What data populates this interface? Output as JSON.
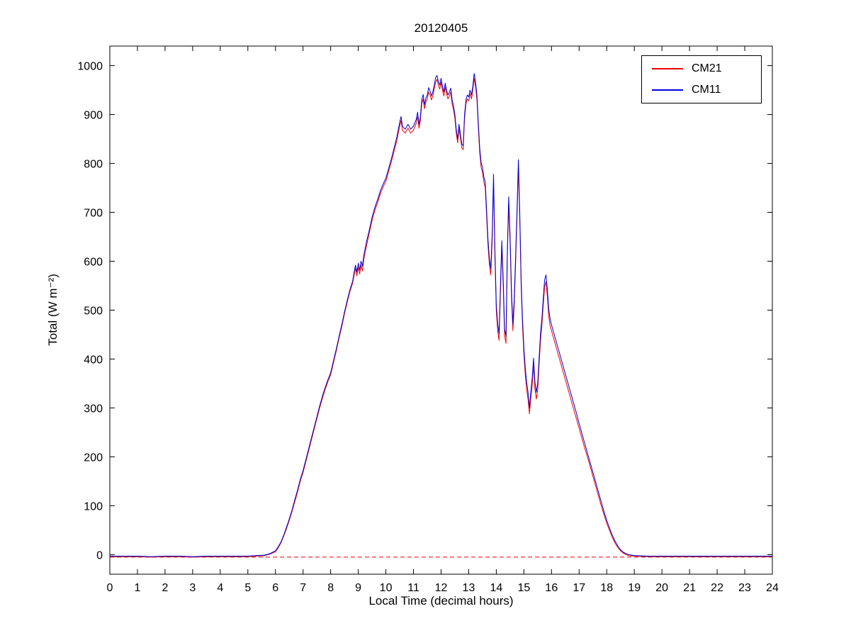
{
  "chart_data": {
    "type": "line",
    "title": "20120405",
    "xlabel": "Local Time (decimal hours)",
    "ylabel": "Total (W m⁻²)",
    "xlim": [
      0,
      24
    ],
    "ylim": [
      -40,
      1040
    ],
    "xticks": [
      0,
      1,
      2,
      3,
      4,
      5,
      6,
      7,
      8,
      9,
      10,
      11,
      12,
      13,
      14,
      15,
      16,
      17,
      18,
      19,
      20,
      21,
      22,
      23,
      24
    ],
    "yticks": [
      0,
      100,
      200,
      300,
      400,
      500,
      600,
      700,
      800,
      900,
      1000
    ],
    "grid": false,
    "legend_position": "top-right",
    "reference_line": {
      "y": -5,
      "color": "#ee0000",
      "style": "dashed"
    },
    "series": [
      {
        "name": "CM21",
        "color": "#ee0000"
      },
      {
        "name": "CM11",
        "color": "#0000dd"
      }
    ],
    "points_format": [
      "x",
      "CM21",
      "CM11"
    ],
    "points": [
      [
        0,
        -4,
        -3
      ],
      [
        0.5,
        -4,
        -3
      ],
      [
        1,
        -4,
        -3
      ],
      [
        1.5,
        -5,
        -4
      ],
      [
        2,
        -4,
        -3
      ],
      [
        2.5,
        -4,
        -3
      ],
      [
        3,
        -5,
        -4
      ],
      [
        3.5,
        -4,
        -3
      ],
      [
        4,
        -4,
        -3
      ],
      [
        4.5,
        -4,
        -3
      ],
      [
        5,
        -4,
        -3
      ],
      [
        5.3,
        -3,
        -2
      ],
      [
        5.6,
        -2,
        -1
      ],
      [
        5.8,
        1,
        2
      ],
      [
        6.0,
        6,
        8
      ],
      [
        6.1,
        14,
        16
      ],
      [
        6.2,
        24,
        26
      ],
      [
        6.3,
        38,
        40
      ],
      [
        6.4,
        53,
        56
      ],
      [
        6.5,
        70,
        73
      ],
      [
        6.6,
        88,
        91
      ],
      [
        6.7,
        108,
        112
      ],
      [
        6.8,
        128,
        132
      ],
      [
        6.9,
        150,
        154
      ],
      [
        7.0,
        168,
        172
      ],
      [
        7.1,
        190,
        194
      ],
      [
        7.2,
        212,
        216
      ],
      [
        7.3,
        234,
        238
      ],
      [
        7.4,
        256,
        260
      ],
      [
        7.5,
        278,
        282
      ],
      [
        7.6,
        300,
        304
      ],
      [
        7.7,
        320,
        324
      ],
      [
        7.8,
        338,
        342
      ],
      [
        7.9,
        354,
        358
      ],
      [
        8.0,
        368,
        372
      ],
      [
        8.1,
        392,
        396
      ],
      [
        8.2,
        416,
        420
      ],
      [
        8.3,
        442,
        446
      ],
      [
        8.4,
        466,
        470
      ],
      [
        8.5,
        492,
        496
      ],
      [
        8.6,
        516,
        520
      ],
      [
        8.7,
        538,
        542
      ],
      [
        8.8,
        556,
        560
      ],
      [
        8.85,
        572,
        578
      ],
      [
        8.9,
        586,
        592
      ],
      [
        8.95,
        570,
        578
      ],
      [
        9.0,
        588,
        596
      ],
      [
        9.05,
        574,
        582
      ],
      [
        9.1,
        592,
        600
      ],
      [
        9.15,
        580,
        590
      ],
      [
        9.2,
        604,
        612
      ],
      [
        9.3,
        632,
        640
      ],
      [
        9.4,
        658,
        664
      ],
      [
        9.5,
        684,
        690
      ],
      [
        9.6,
        704,
        710
      ],
      [
        9.7,
        720,
        726
      ],
      [
        9.8,
        738,
        744
      ],
      [
        9.9,
        752,
        758
      ],
      [
        10.0,
        764,
        770
      ],
      [
        10.1,
        784,
        790
      ],
      [
        10.2,
        804,
        810
      ],
      [
        10.3,
        826,
        832
      ],
      [
        10.4,
        848,
        855
      ],
      [
        10.45,
        862,
        870
      ],
      [
        10.5,
        876,
        884
      ],
      [
        10.55,
        888,
        896
      ],
      [
        10.6,
        868,
        876
      ],
      [
        10.7,
        862,
        870
      ],
      [
        10.8,
        872,
        880
      ],
      [
        10.9,
        862,
        870
      ],
      [
        11.0,
        868,
        876
      ],
      [
        11.1,
        882,
        890
      ],
      [
        11.15,
        896,
        905
      ],
      [
        11.2,
        872,
        880
      ],
      [
        11.25,
        888,
        896
      ],
      [
        11.3,
        922,
        930
      ],
      [
        11.35,
        932,
        941
      ],
      [
        11.4,
        912,
        920
      ],
      [
        11.45,
        926,
        934
      ],
      [
        11.5,
        932,
        940
      ],
      [
        11.55,
        946,
        955
      ],
      [
        11.6,
        940,
        948
      ],
      [
        11.65,
        930,
        938
      ],
      [
        11.7,
        938,
        946
      ],
      [
        11.75,
        952,
        960
      ],
      [
        11.8,
        966,
        975
      ],
      [
        11.85,
        972,
        980
      ],
      [
        11.9,
        960,
        968
      ],
      [
        11.95,
        952,
        960
      ],
      [
        12.0,
        966,
        974
      ],
      [
        12.05,
        950,
        958
      ],
      [
        12.1,
        938,
        946
      ],
      [
        12.15,
        956,
        964
      ],
      [
        12.2,
        942,
        950
      ],
      [
        12.25,
        932,
        940
      ],
      [
        12.3,
        938,
        946
      ],
      [
        12.35,
        946,
        954
      ],
      [
        12.4,
        922,
        930
      ],
      [
        12.45,
        910,
        918
      ],
      [
        12.5,
        892,
        900
      ],
      [
        12.55,
        862,
        870
      ],
      [
        12.6,
        842,
        850
      ],
      [
        12.65,
        872,
        880
      ],
      [
        12.7,
        852,
        860
      ],
      [
        12.75,
        832,
        840
      ],
      [
        12.8,
        828,
        836
      ],
      [
        12.85,
        892,
        900
      ],
      [
        12.9,
        922,
        930
      ],
      [
        12.95,
        932,
        940
      ],
      [
        13.0,
        928,
        936
      ],
      [
        13.05,
        942,
        950
      ],
      [
        13.1,
        932,
        940
      ],
      [
        13.15,
        950,
        958
      ],
      [
        13.2,
        974,
        984
      ],
      [
        13.25,
        956,
        965
      ],
      [
        13.3,
        930,
        940
      ],
      [
        13.35,
        872,
        882
      ],
      [
        13.4,
        822,
        832
      ],
      [
        13.45,
        792,
        802
      ],
      [
        13.5,
        782,
        792
      ],
      [
        13.55,
        762,
        772
      ],
      [
        13.6,
        750,
        762
      ],
      [
        13.65,
        690,
        702
      ],
      [
        13.7,
        632,
        645
      ],
      [
        13.75,
        592,
        605
      ],
      [
        13.8,
        572,
        585
      ],
      [
        13.85,
        640,
        655
      ],
      [
        13.9,
        762,
        778
      ],
      [
        13.95,
        608,
        622
      ],
      [
        14.0,
        498,
        512
      ],
      [
        14.05,
        458,
        472
      ],
      [
        14.1,
        438,
        452
      ],
      [
        14.15,
        538,
        552
      ],
      [
        14.2,
        628,
        642
      ],
      [
        14.25,
        548,
        562
      ],
      [
        14.3,
        448,
        462
      ],
      [
        14.35,
        432,
        446
      ],
      [
        14.4,
        608,
        622
      ],
      [
        14.45,
        716,
        732
      ],
      [
        14.5,
        638,
        652
      ],
      [
        14.55,
        528,
        542
      ],
      [
        14.6,
        458,
        472
      ],
      [
        14.65,
        508,
        522
      ],
      [
        14.7,
        598,
        612
      ],
      [
        14.75,
        688,
        702
      ],
      [
        14.8,
        792,
        808
      ],
      [
        14.85,
        688,
        702
      ],
      [
        14.9,
        548,
        562
      ],
      [
        14.95,
        468,
        482
      ],
      [
        15.0,
        408,
        422
      ],
      [
        15.05,
        368,
        382
      ],
      [
        15.1,
        338,
        352
      ],
      [
        15.15,
        318,
        332
      ],
      [
        15.2,
        288,
        300
      ],
      [
        15.25,
        318,
        332
      ],
      [
        15.3,
        348,
        362
      ],
      [
        15.35,
        388,
        402
      ],
      [
        15.4,
        338,
        352
      ],
      [
        15.45,
        318,
        332
      ],
      [
        15.5,
        338,
        352
      ],
      [
        15.55,
        388,
        402
      ],
      [
        15.6,
        438,
        452
      ],
      [
        15.65,
        468,
        482
      ],
      [
        15.7,
        508,
        522
      ],
      [
        15.75,
        548,
        562
      ],
      [
        15.8,
        558,
        572
      ],
      [
        15.85,
        528,
        542
      ],
      [
        15.9,
        488,
        502
      ],
      [
        15.95,
        468,
        482
      ],
      [
        16.0,
        458,
        470
      ],
      [
        16.1,
        438,
        450
      ],
      [
        16.2,
        418,
        430
      ],
      [
        16.3,
        398,
        410
      ],
      [
        16.4,
        378,
        390
      ],
      [
        16.5,
        358,
        370
      ],
      [
        16.6,
        338,
        350
      ],
      [
        16.7,
        318,
        330
      ],
      [
        16.8,
        298,
        310
      ],
      [
        16.9,
        278,
        290
      ],
      [
        17.0,
        258,
        268
      ],
      [
        17.1,
        238,
        248
      ],
      [
        17.2,
        218,
        228
      ],
      [
        17.3,
        200,
        208
      ],
      [
        17.4,
        180,
        188
      ],
      [
        17.5,
        160,
        168
      ],
      [
        17.6,
        140,
        148
      ],
      [
        17.7,
        120,
        128
      ],
      [
        17.8,
        100,
        108
      ],
      [
        17.9,
        82,
        88
      ],
      [
        18.0,
        64,
        70
      ],
      [
        18.1,
        50,
        55
      ],
      [
        18.2,
        36,
        40
      ],
      [
        18.3,
        24,
        28
      ],
      [
        18.4,
        15,
        18
      ],
      [
        18.5,
        8,
        10
      ],
      [
        18.6,
        3,
        5
      ],
      [
        18.7,
        0,
        2
      ],
      [
        18.8,
        -2,
        0
      ],
      [
        19.0,
        -3,
        -2
      ],
      [
        19.5,
        -4,
        -3
      ],
      [
        20,
        -4,
        -3
      ],
      [
        20.5,
        -4,
        -3
      ],
      [
        21,
        -4,
        -3
      ],
      [
        21.5,
        -4,
        -3
      ],
      [
        22,
        -4,
        -3
      ],
      [
        22.5,
        -4,
        -3
      ],
      [
        23,
        -4,
        -3
      ],
      [
        23.5,
        -4,
        -3
      ],
      [
        24,
        -4,
        -3
      ]
    ]
  }
}
